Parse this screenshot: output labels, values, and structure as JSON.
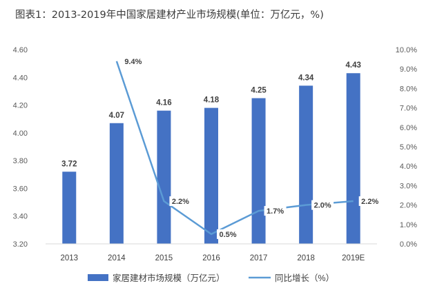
{
  "chart_data": {
    "type": "bar",
    "title": "图表1：2013-2019年中国家居建材产业市场规模(单位：万亿元，%)",
    "categories": [
      "2013",
      "2014",
      "2015",
      "2016",
      "2017",
      "2018",
      "2019E"
    ],
    "series": [
      {
        "name": "家居建材市场规模（万亿元）",
        "kind": "bar",
        "axis": "left",
        "values": [
          3.72,
          4.07,
          4.16,
          4.18,
          4.25,
          4.34,
          4.43
        ],
        "labels": [
          "3.72",
          "4.07",
          "4.16",
          "4.18",
          "4.25",
          "4.34",
          "4.43"
        ]
      },
      {
        "name": "同比增长（%）",
        "kind": "line",
        "axis": "right",
        "values": [
          null,
          9.4,
          2.2,
          0.5,
          1.7,
          2.0,
          2.2
        ],
        "labels": [
          "",
          "9.4%",
          "2.2%",
          "0.5%",
          "1.7%",
          "2.0%",
          "2.2%"
        ]
      }
    ],
    "y_left": {
      "range": [
        3.2,
        4.6
      ],
      "ticks": [
        "3.20",
        "3.40",
        "3.60",
        "3.80",
        "4.00",
        "4.20",
        "4.40",
        "4.60"
      ]
    },
    "y_right": {
      "range": [
        0,
        10
      ],
      "ticks": [
        "0.0%",
        "1.0%",
        "2.0%",
        "3.0%",
        "4.0%",
        "5.0%",
        "6.0%",
        "7.0%",
        "8.0%",
        "9.0%",
        "10.0%"
      ]
    },
    "grid": false,
    "legend_position": "bottom",
    "colors": {
      "bar": "#4472c4",
      "line": "#5b9bd5"
    }
  }
}
